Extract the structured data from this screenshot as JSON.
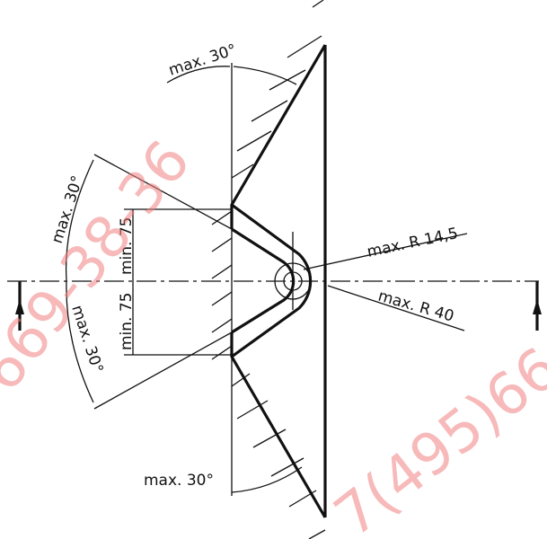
{
  "labels": {
    "angle_top": "max. 30°",
    "angle_left_upper": "max. 30°",
    "angle_left_lower": "max. 30°",
    "angle_bottom": "max. 30°",
    "min_upper": "min. 75",
    "min_lower": "min. 75",
    "radius_small": "max. R 14,5",
    "radius_large": "max. R 40"
  },
  "watermark": {
    "left": "669-38-36",
    "right": "7(495)66"
  }
}
